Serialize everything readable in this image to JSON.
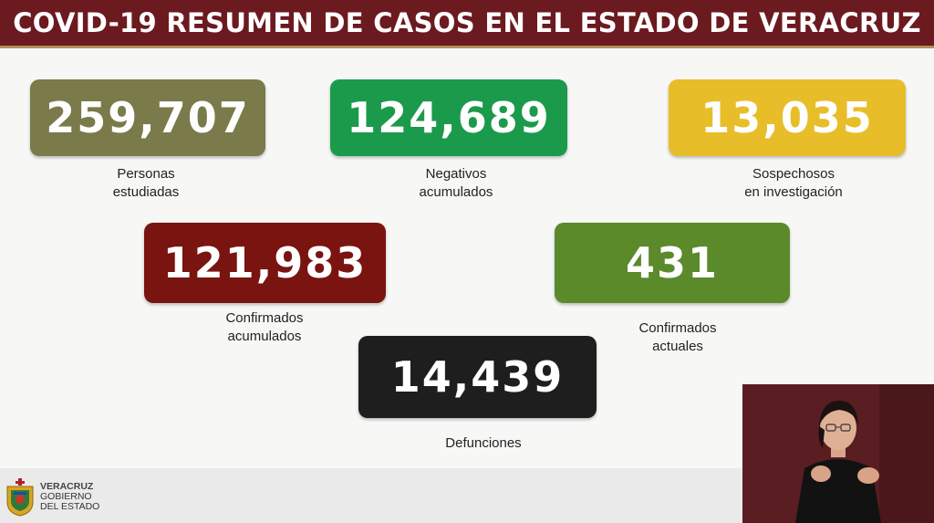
{
  "header": {
    "title": "COVID-19 RESUMEN DE CASOS EN EL ESTADO DE VERACRUZ"
  },
  "stats": [
    {
      "value": "259,707",
      "label": "Personas\nestudiadas",
      "color": "#7a7a4a"
    },
    {
      "value": "124,689",
      "label": "Negativos\nacumulados",
      "color": "#1b9a4b"
    },
    {
      "value": "13,035",
      "label": "Sospechosos\nen investigación",
      "color": "#e8bd2a"
    },
    {
      "value": "121,983",
      "label": "Confirmados\nacumulados",
      "color": "#7a1410"
    },
    {
      "value": "431",
      "label": "Confirmados\nactuales",
      "color": "#5b8a2b"
    },
    {
      "value": "14,439",
      "label": "Defunciones",
      "color": "#1e1e1e"
    }
  ],
  "footer": {
    "gov_line1": "VERACRUZ",
    "gov_line2": "GOBIERNO",
    "gov_line3": "DEL ESTADO",
    "logo_icon": "state-coat-of-arms-icon"
  },
  "overlay": {
    "type": "sign-language-interpreter"
  }
}
